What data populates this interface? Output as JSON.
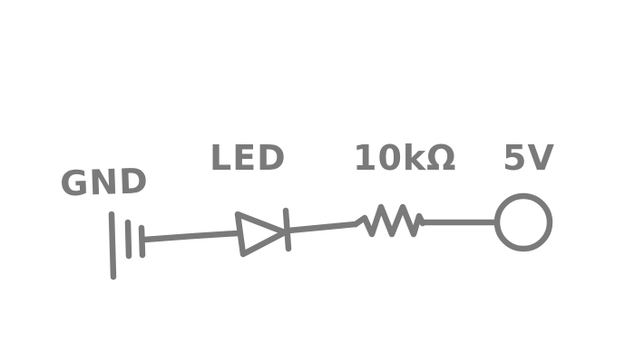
{
  "labels": {
    "gnd": "GND",
    "led": "LED",
    "resistor": "10kΩ",
    "supply": "5V"
  },
  "colors": {
    "ink": "#7a7a7a",
    "background": "#ffffff"
  }
}
